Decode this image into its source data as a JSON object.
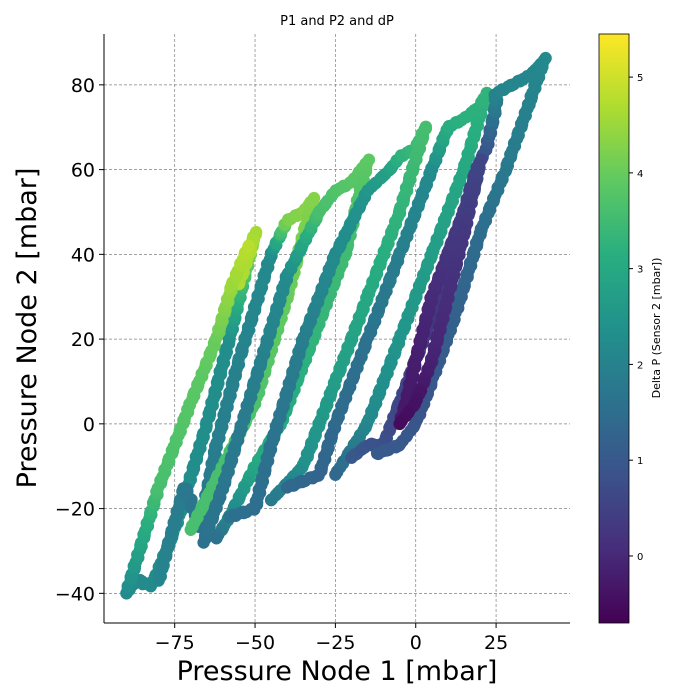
{
  "chart_data": {
    "type": "scatter",
    "title": "P1 and P2 and dP",
    "xlabel": "Pressure Node 1 [mbar]",
    "ylabel": "Pressure Node 2 [mbar]",
    "xlim": [
      -97,
      48
    ],
    "ylim": [
      -47,
      92
    ],
    "xticks": [
      -75,
      -50,
      -25,
      0,
      25
    ],
    "yticks": [
      -40,
      -20,
      0,
      20,
      40,
      60,
      80
    ],
    "xtick_labels": [
      "−75",
      "−50",
      "−25",
      "0",
      "25"
    ],
    "ytick_labels": [
      "−40",
      "−20",
      "0",
      "20",
      "40",
      "60",
      "80"
    ],
    "grid": true,
    "colorbar": {
      "label": "Delta P (Sensor 2 [mbar])",
      "range": [
        -0.7,
        5.45
      ],
      "ticks": [
        0,
        1,
        2,
        3,
        4,
        5
      ],
      "tick_labels": [
        "0",
        "1",
        "2",
        "3",
        "4",
        "5"
      ],
      "colormap": "viridis"
    },
    "series": [
      {
        "points": [
          [
            -90,
            -40,
            2.2
          ],
          [
            -87,
            -37,
            2.2
          ],
          [
            -82,
            -38,
            2.2
          ],
          [
            -75,
            -25,
            2.3
          ],
          [
            -65,
            0,
            2.3
          ],
          [
            -58,
            20,
            2.3
          ],
          [
            -50,
            45,
            4.6
          ],
          [
            -52,
            40,
            4.7
          ],
          [
            -55,
            33,
            4.7
          ]
        ]
      },
      {
        "points": [
          [
            -90,
            -40,
            2.2
          ],
          [
            -80,
            -15,
            3.6
          ],
          [
            -70,
            5,
            3.8
          ],
          [
            -62,
            20,
            4.0
          ],
          [
            -57,
            33,
            4.5
          ],
          [
            -52,
            42,
            4.8
          ]
        ]
      },
      {
        "points": [
          [
            -80,
            -37,
            2.1
          ],
          [
            -72,
            -15,
            1.8
          ],
          [
            -67,
            -24,
            1.6
          ],
          [
            -62,
            -5,
            1.9
          ],
          [
            -55,
            15,
            2.0
          ],
          [
            -45,
            40,
            2.2
          ],
          [
            -40,
            48,
            4.2
          ],
          [
            -35,
            50,
            4.3
          ],
          [
            -32,
            53,
            4.3
          ],
          [
            -40,
            30,
            4.0
          ],
          [
            -50,
            5,
            3.7
          ],
          [
            -60,
            -10,
            3.6
          ],
          [
            -70,
            -25,
            3.6
          ]
        ]
      },
      {
        "points": [
          [
            -66,
            -28,
            1.6
          ],
          [
            -60,
            -15,
            1.7
          ],
          [
            -50,
            10,
            1.9
          ],
          [
            -40,
            35,
            2.2
          ],
          [
            -30,
            50,
            3.6
          ],
          [
            -25,
            55,
            3.7
          ],
          [
            -20,
            57,
            3.8
          ],
          [
            -15,
            62,
            3.9
          ],
          [
            -22,
            40,
            3.5
          ],
          [
            -32,
            20,
            3.3
          ],
          [
            -42,
            0,
            3.0
          ],
          [
            -50,
            -10,
            3.0
          ],
          [
            -58,
            -22,
            2.2
          ],
          [
            -62,
            -27,
            1.6
          ]
        ]
      },
      {
        "points": [
          [
            -58,
            -22,
            1.6
          ],
          [
            -50,
            -20,
            1.5
          ],
          [
            -45,
            -5,
            1.6
          ],
          [
            -35,
            20,
            1.9
          ],
          [
            -25,
            40,
            2.2
          ],
          [
            -15,
            55,
            2.5
          ],
          [
            -8,
            60,
            2.8
          ],
          [
            -5,
            63,
            3.2
          ],
          [
            0,
            65,
            3.4
          ],
          [
            3,
            70,
            3.6
          ],
          [
            -5,
            50,
            3.3
          ],
          [
            -15,
            30,
            3.0
          ],
          [
            -25,
            10,
            2.7
          ],
          [
            -35,
            -10,
            2.4
          ],
          [
            -45,
            -18,
            1.8
          ]
        ]
      },
      {
        "points": [
          [
            -40,
            -15,
            1.4
          ],
          [
            -30,
            -12,
            1.3
          ],
          [
            -25,
            0,
            1.4
          ],
          [
            -15,
            20,
            1.6
          ],
          [
            -5,
            40,
            1.9
          ],
          [
            5,
            60,
            2.2
          ],
          [
            10,
            70,
            3.1
          ],
          [
            15,
            72,
            3.2
          ],
          [
            20,
            75,
            3.2
          ],
          [
            22,
            78,
            3.3
          ],
          [
            15,
            60,
            3.0
          ],
          [
            5,
            40,
            2.7
          ],
          [
            -5,
            20,
            2.5
          ],
          [
            -15,
            0,
            2.2
          ],
          [
            -25,
            -12,
            1.4
          ]
        ]
      },
      {
        "points": [
          [
            -20,
            -8,
            1.0
          ],
          [
            -15,
            -5,
            0.9
          ],
          [
            -10,
            -5,
            0.8
          ],
          [
            -5,
            5,
            0.6
          ],
          [
            0,
            15,
            0.5
          ],
          [
            5,
            25,
            0.3
          ],
          [
            10,
            40,
            0.4
          ],
          [
            15,
            50,
            0.6
          ],
          [
            18,
            55,
            0.7
          ],
          [
            20,
            62,
            0.8
          ],
          [
            22,
            65,
            0.9
          ],
          [
            25,
            75,
            1.8
          ],
          [
            25,
            78,
            2.0
          ],
          [
            30,
            80,
            2.1
          ],
          [
            35,
            82,
            2.1
          ],
          [
            38,
            84,
            2.1
          ],
          [
            40,
            86,
            2.2
          ],
          [
            35,
            75,
            2.0
          ],
          [
            28,
            60,
            1.8
          ],
          [
            20,
            45,
            1.5
          ],
          [
            12,
            25,
            1.2
          ],
          [
            5,
            10,
            1.0
          ],
          [
            0,
            0,
            0.9
          ],
          [
            -5,
            -5,
            1.0
          ],
          [
            -12,
            -7,
            1.0
          ]
        ]
      },
      {
        "points": [
          [
            -5,
            0,
            -0.2
          ],
          [
            -3,
            5,
            -0.3
          ],
          [
            0,
            15,
            -0.2
          ],
          [
            5,
            30,
            0.0
          ],
          [
            10,
            40,
            0.2
          ],
          [
            15,
            50,
            0.4
          ],
          [
            18,
            58,
            0.5
          ],
          [
            20,
            62,
            0.6
          ],
          [
            15,
            45,
            0.3
          ],
          [
            10,
            30,
            0.1
          ],
          [
            5,
            15,
            -0.1
          ],
          [
            0,
            5,
            -0.4
          ],
          [
            -5,
            0,
            -0.5
          ]
        ]
      }
    ]
  }
}
